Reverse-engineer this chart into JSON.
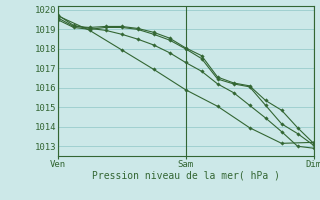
{
  "background_color": "#cce8e8",
  "grid_color": "#99cccc",
  "line_color": "#336633",
  "ylabel_min": 1012.5,
  "ylabel_max": 1020.2,
  "yticks": [
    1013,
    1014,
    1015,
    1016,
    1017,
    1018,
    1019,
    1020
  ],
  "xlabel": "Pression niveau de la mer( hPa )",
  "xtick_labels": [
    "Ven",
    "Sam",
    "Dim"
  ],
  "xtick_positions": [
    0,
    24,
    48
  ],
  "x_total": 48,
  "series": [
    {
      "x": [
        0,
        3,
        6,
        9,
        12,
        15,
        18,
        21,
        24,
        27,
        30,
        33,
        36,
        39,
        42,
        45,
        48
      ],
      "y": [
        1019.6,
        1019.15,
        1019.1,
        1019.15,
        1019.15,
        1019.05,
        1018.85,
        1018.55,
        1018.05,
        1017.65,
        1016.55,
        1016.25,
        1016.1,
        1015.35,
        1014.85,
        1013.95,
        1013.15
      ]
    },
    {
      "x": [
        0,
        3,
        6,
        9,
        12,
        15,
        18,
        21,
        24,
        27,
        30,
        33,
        36,
        39,
        42,
        45,
        48
      ],
      "y": [
        1019.5,
        1019.1,
        1019.0,
        1019.1,
        1019.1,
        1019.0,
        1018.75,
        1018.45,
        1018.0,
        1017.5,
        1016.45,
        1016.2,
        1016.05,
        1015.1,
        1014.15,
        1013.65,
        1013.05
      ]
    },
    {
      "x": [
        0,
        3,
        6,
        9,
        12,
        15,
        18,
        21,
        24,
        27,
        30,
        33,
        36,
        39,
        42,
        45,
        48
      ],
      "y": [
        1019.75,
        1019.2,
        1019.05,
        1018.95,
        1018.75,
        1018.5,
        1018.2,
        1017.8,
        1017.3,
        1016.85,
        1016.2,
        1015.75,
        1015.1,
        1014.45,
        1013.75,
        1013.0,
        1012.9
      ]
    },
    {
      "x": [
        0,
        6,
        12,
        18,
        24,
        30,
        36,
        42,
        48
      ],
      "y": [
        1019.7,
        1018.95,
        1017.95,
        1016.95,
        1015.9,
        1015.05,
        1013.95,
        1013.15,
        1013.2
      ]
    }
  ]
}
